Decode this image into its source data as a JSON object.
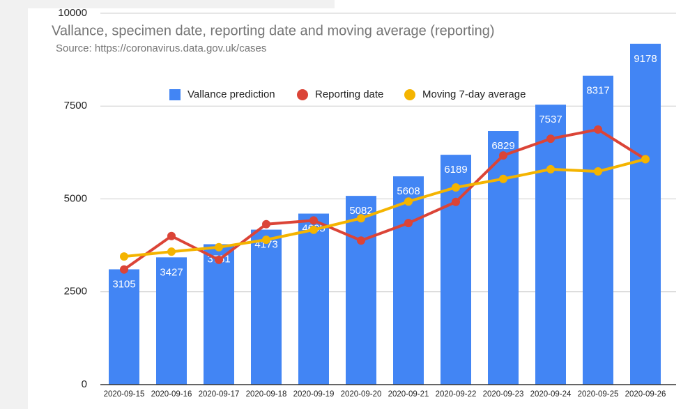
{
  "chart_data": {
    "type": "bar",
    "title": "Vallance, specimen date, reporting date and moving average (reporting)",
    "subtitle": "Source: https://coronavirus.data.gov.uk/cases",
    "categories": [
      "2020-09-15",
      "2020-09-16",
      "2020-09-17",
      "2020-09-18",
      "2020-09-19",
      "2020-09-20",
      "2020-09-21",
      "2020-09-22",
      "2020-09-23",
      "2020-09-24",
      "2020-09-25",
      "2020-09-26"
    ],
    "series": [
      {
        "name": "Vallance prediction",
        "type": "bar",
        "color": "#4285f4",
        "values": [
          3105,
          3427,
          3781,
          4173,
          4605,
          5082,
          5608,
          6189,
          6829,
          7537,
          8317,
          9178
        ]
      },
      {
        "name": "Reporting date",
        "type": "line",
        "color": "#db4437",
        "values": [
          3100,
          4000,
          3360,
          4320,
          4420,
          3880,
          4350,
          4920,
          6170,
          6620,
          6870,
          6070
        ]
      },
      {
        "name": "Moving 7-day average",
        "type": "line",
        "color": "#f4b400",
        "values": [
          3450,
          3580,
          3700,
          3900,
          4170,
          4480,
          4930,
          5310,
          5540,
          5800,
          5740,
          6070
        ]
      }
    ],
    "ylim": [
      0,
      10000
    ],
    "yticks": [
      0,
      2500,
      5000,
      7500,
      10000
    ],
    "grid": true,
    "legend": "top"
  }
}
